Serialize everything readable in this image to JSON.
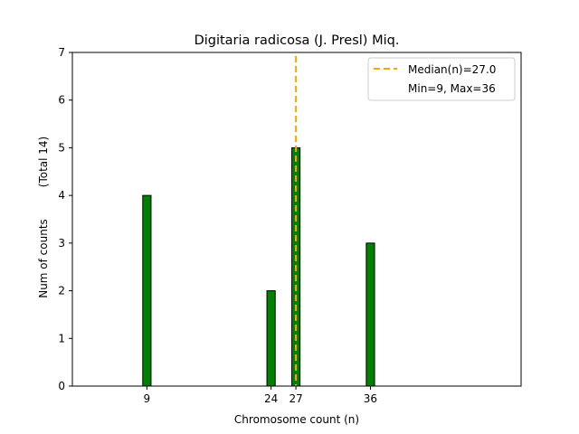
{
  "chart_data": {
    "type": "bar",
    "title": "Digitaria radicosa (J. Presl) Miq.",
    "xlabel": "Chromosome count (n)",
    "ylabel": "Num of counts",
    "ylabel_secondary": "(Total 14)",
    "x": [
      9,
      24,
      27,
      36
    ],
    "values": [
      4,
      2,
      5,
      3
    ],
    "bar_color": "#008000",
    "bar_edge_color": "#000000",
    "xlim": [
      0,
      54.2
    ],
    "ylim": [
      0,
      7
    ],
    "zero_baseline_range": [
      0,
      39.6
    ],
    "xticks": [
      9,
      24,
      27,
      36
    ],
    "yticks": [
      0,
      1,
      2,
      3,
      4,
      5,
      6,
      7
    ],
    "median": 27.0,
    "median_color": "#FFA500",
    "legend": {
      "placement": "top-right",
      "entries": [
        "Median(n)=27.0",
        "Min=9, Max=36"
      ]
    },
    "grid": false
  }
}
